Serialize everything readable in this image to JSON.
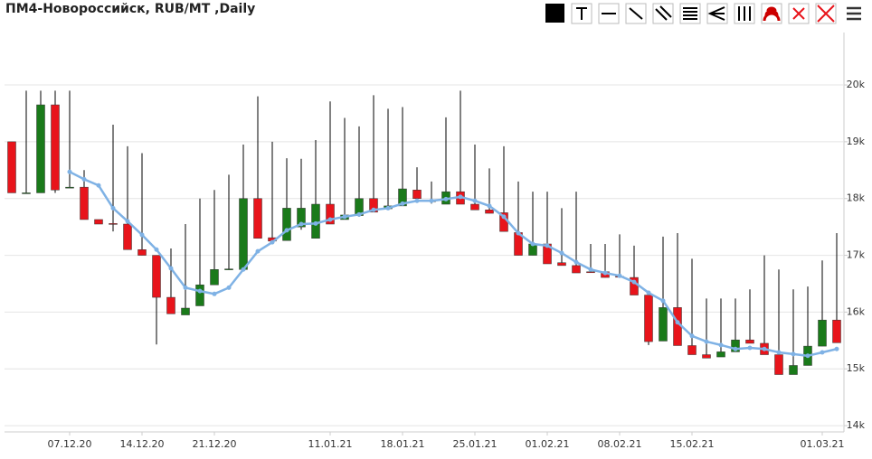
{
  "chart_data": {
    "type": "candlestick",
    "title": "ПМ4-Новороссийск, RUB/MT ,Daily",
    "categories": [
      null,
      null,
      null,
      null,
      "07.12.20",
      null,
      null,
      null,
      null,
      "14.12.20",
      null,
      null,
      null,
      null,
      "21.12.20",
      null,
      null,
      null,
      null,
      null,
      null,
      null,
      "11.01.21",
      null,
      null,
      null,
      null,
      "18.01.21",
      null,
      null,
      null,
      null,
      "25.01.21",
      null,
      null,
      null,
      null,
      "01.02.21",
      null,
      null,
      null,
      null,
      "08.02.21",
      null,
      null,
      null,
      null,
      "15.02.21",
      null,
      null,
      null,
      null,
      null,
      null,
      null,
      null,
      "01.03.21",
      null
    ],
    "open": [
      19000,
      18100,
      18100,
      19650,
      18200,
      18200,
      17630,
      17560,
      17550,
      17100,
      17000,
      16260,
      15950,
      16110,
      16480,
      16750,
      16750,
      18000,
      17310,
      17260,
      17500,
      17300,
      17900,
      17630,
      17700,
      18000,
      17820,
      17870,
      18150,
      17960,
      17900,
      18120,
      17900,
      17800,
      17750,
      17400,
      17000,
      17200,
      16870,
      16820,
      16710,
      16710,
      16630,
      16610,
      16300,
      15490,
      16080,
      15410,
      15250,
      15210,
      15300,
      15510,
      15450,
      15250,
      14900,
      15060,
      15400,
      15860
    ],
    "high": [
      19000,
      19900,
      19900,
      19900,
      19900,
      18500,
      17630,
      19300,
      18920,
      18800,
      17000,
      17120,
      17550,
      18000,
      18150,
      18420,
      18950,
      19800,
      19000,
      18710,
      18700,
      19030,
      19710,
      19420,
      19270,
      19820,
      19580,
      19610,
      18550,
      18300,
      19430,
      19900,
      18950,
      18530,
      18920,
      18300,
      18120,
      18120,
      17830,
      18120,
      17200,
      17200,
      17370,
      17170,
      16300,
      17330,
      17390,
      16940,
      16240,
      16240,
      16240,
      16400,
      17000,
      16750,
      16400,
      16450,
      16910,
      17390
    ],
    "low": [
      18100,
      18100,
      18100,
      18100,
      18200,
      17630,
      17550,
      17420,
      17100,
      17000,
      15430,
      15970,
      15950,
      16110,
      16480,
      16750,
      16750,
      17300,
      17250,
      17260,
      17450,
      17300,
      17550,
      17630,
      17680,
      17760,
      17800,
      17870,
      18000,
      17910,
      17900,
      17900,
      17800,
      17740,
      17420,
      17000,
      17000,
      16850,
      16820,
      16690,
      16690,
      16610,
      16620,
      16300,
      15420,
      15490,
      15410,
      15250,
      15190,
      15210,
      15300,
      15450,
      15250,
      14900,
      14900,
      15060,
      15400,
      15460
    ],
    "close": [
      18100,
      18100,
      19650,
      18150,
      18200,
      17630,
      17550,
      17550,
      17100,
      17000,
      16260,
      15970,
      16070,
      16480,
      16750,
      16760,
      18000,
      17300,
      17250,
      17830,
      17830,
      17900,
      17550,
      17710,
      18000,
      17760,
      17870,
      18170,
      18000,
      17960,
      18120,
      17900,
      17800,
      17740,
      17420,
      17000,
      17200,
      16850,
      16820,
      16690,
      16700,
      16610,
      16620,
      16300,
      15480,
      16080,
      15410,
      15250,
      15190,
      15300,
      15510,
      15450,
      15250,
      14900,
      15060,
      15400,
      15860,
      15460
    ],
    "up_color": "#1a7a1a",
    "down_color": "#e8141b",
    "moving_average": {
      "color": "#7fb2e5",
      "values": [
        null,
        null,
        null,
        null,
        18470,
        18340,
        18230,
        17830,
        17600,
        17360,
        17100,
        16770,
        16430,
        16370,
        16320,
        16430,
        16750,
        17070,
        17230,
        17440,
        17550,
        17560,
        17630,
        17680,
        17720,
        17800,
        17830,
        17910,
        17960,
        17960,
        17990,
        18030,
        17960,
        17870,
        17680,
        17390,
        17200,
        17170,
        17040,
        16880,
        16750,
        16690,
        16640,
        16530,
        16340,
        16200,
        15820,
        15580,
        15480,
        15420,
        15350,
        15370,
        15350,
        15290,
        15260,
        15230,
        15290,
        15350
      ]
    },
    "ylim": [
      13890,
      20860
    ],
    "yticks": [
      {
        "value": 14000,
        "label": "14k"
      },
      {
        "value": 15000,
        "label": "15k"
      },
      {
        "value": 16000,
        "label": "16k"
      },
      {
        "value": 17000,
        "label": "17k"
      },
      {
        "value": 18000,
        "label": "18k"
      },
      {
        "value": 19000,
        "label": "19k"
      },
      {
        "value": 20000,
        "label": "20k"
      }
    ],
    "grid": true
  }
}
